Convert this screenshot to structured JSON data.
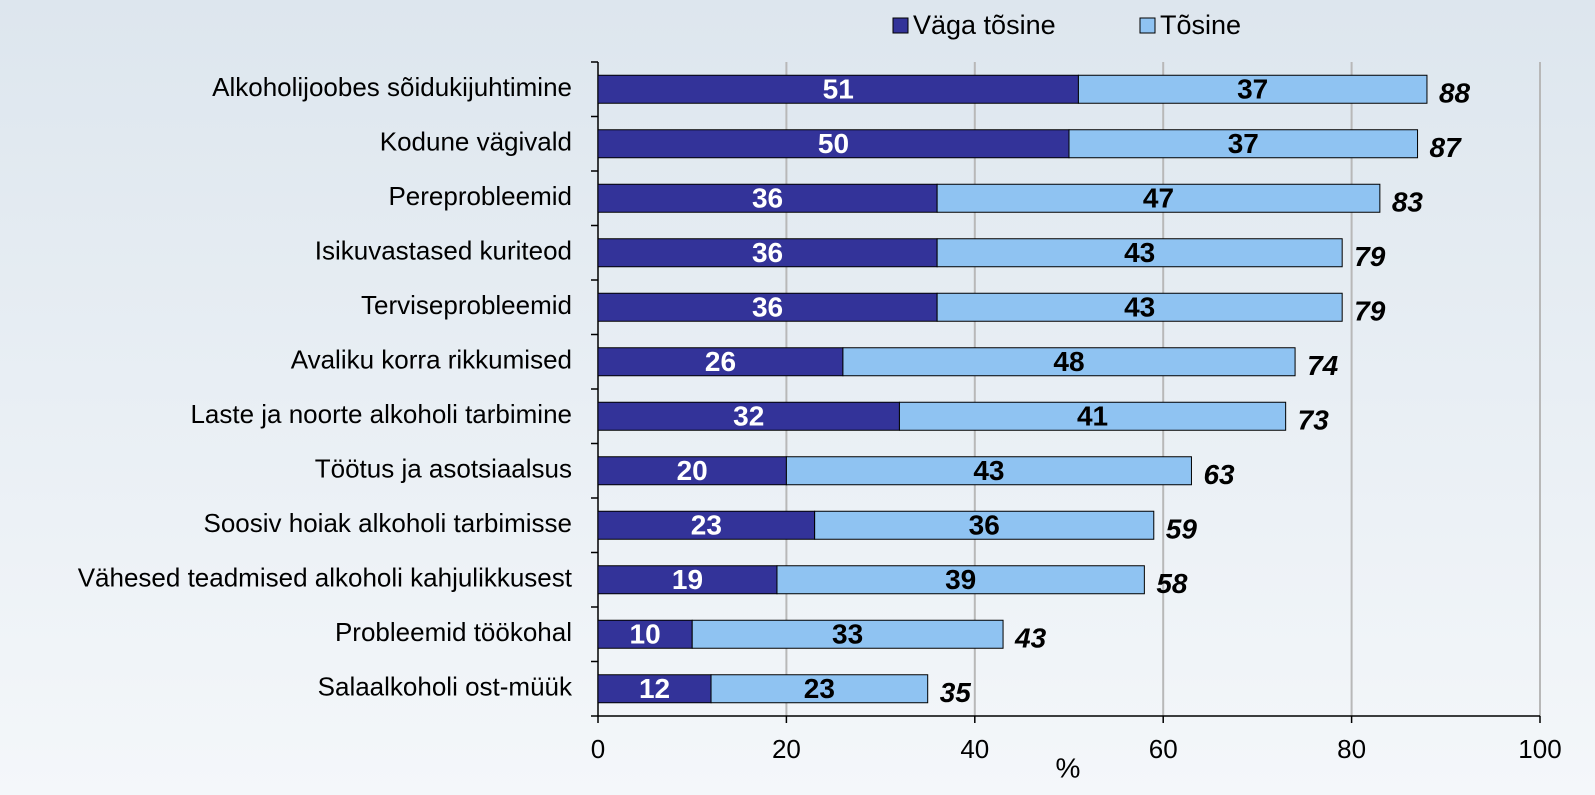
{
  "chart_data": {
    "type": "stacked-bar-horizontal",
    "categories": [
      "Alkoholijoobes sõidukijuhtimine",
      "Kodune vägivald",
      "Pereprobleemid",
      "Isikuvastased kuriteod",
      "Terviseprobleemid",
      "Avaliku korra rikkumised",
      "Laste ja noorte alkoholi tarbimine",
      "Töötus ja asotsiaalsus",
      "Soosiv hoiak alkoholi tarbimisse",
      "Vähesed teadmised alkoholi kahjulikkusest",
      "Probleemid töökohal",
      "Salaalkoholi ost-müük"
    ],
    "series": [
      {
        "name": "Väga tõsine",
        "color": "#333399",
        "values": [
          51,
          50,
          36,
          36,
          36,
          26,
          32,
          20,
          23,
          19,
          10,
          12
        ]
      },
      {
        "name": "Tõsine",
        "color": "#8fc3f2",
        "values": [
          37,
          37,
          47,
          43,
          43,
          48,
          41,
          43,
          36,
          39,
          33,
          23
        ]
      }
    ],
    "totals": [
      88,
      87,
      83,
      79,
      79,
      74,
      73,
      63,
      59,
      58,
      43,
      35
    ],
    "xlim": [
      0,
      100
    ],
    "xticks": [
      0,
      20,
      40,
      60,
      80,
      100
    ],
    "xlabel": "%",
    "grid": true,
    "legend": "top"
  }
}
